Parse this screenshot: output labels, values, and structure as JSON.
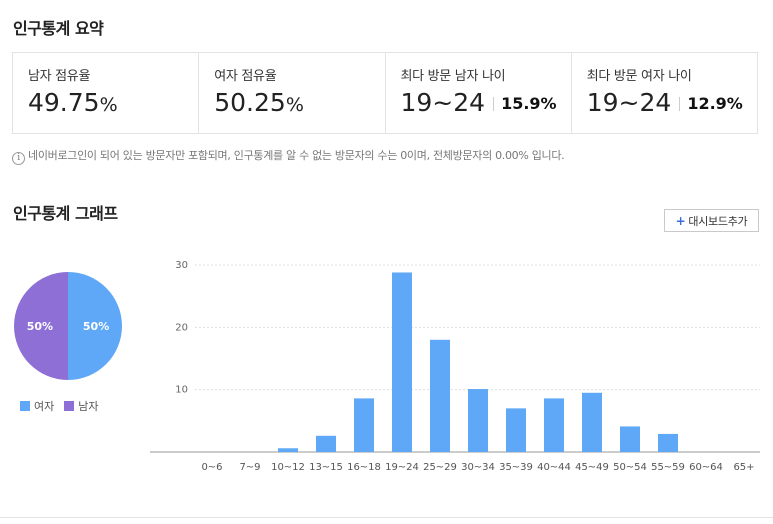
{
  "summary": {
    "title": "인구통계 요약",
    "cards": [
      {
        "label": "남자 점유율",
        "value": "49.75",
        "unit": "%"
      },
      {
        "label": "여자 점유율",
        "value": "50.25",
        "unit": "%"
      },
      {
        "label": "최다 방문 남자 나이",
        "value": "19~24",
        "share": "15.9%"
      },
      {
        "label": "최다 방문 여자 나이",
        "value": "19~24",
        "share": "12.9%"
      }
    ],
    "notice": "네이버로그인이 되어 있는 방문자만 포함되며, 인구통계를 알 수 없는 방문자의 수는 0이며, 전체방문자의 0.00% 입니다."
  },
  "graph": {
    "title": "인구통계 그래프",
    "dashboard_button": "대시보드추가"
  },
  "colors": {
    "female": "#5ea8f7",
    "male": "#8d6fd6",
    "bar": "#5ea8f7",
    "grid": "#dddddd",
    "axis": "#999999"
  },
  "chart_data": [
    {
      "type": "pie",
      "slices": [
        {
          "name": "여자",
          "value": 50,
          "label": "50%",
          "color": "#5ea8f7"
        },
        {
          "name": "남자",
          "value": 50,
          "label": "50%",
          "color": "#8d6fd6"
        }
      ],
      "legend": [
        "여자",
        "남자"
      ],
      "legend_position": "bottom"
    },
    {
      "type": "bar",
      "categories": [
        "0~6",
        "7~9",
        "10~12",
        "13~15",
        "16~18",
        "19~24",
        "25~29",
        "30~34",
        "35~39",
        "40~44",
        "45~49",
        "50~54",
        "55~59",
        "60~64",
        "65+"
      ],
      "values": [
        0,
        0,
        0.6,
        2.6,
        8.6,
        28.8,
        18,
        10.1,
        7,
        8.6,
        9.5,
        4.1,
        2.9,
        0,
        0
      ],
      "yticks": [
        10,
        20,
        30
      ],
      "ylim": [
        0,
        30
      ],
      "grid": true
    }
  ]
}
